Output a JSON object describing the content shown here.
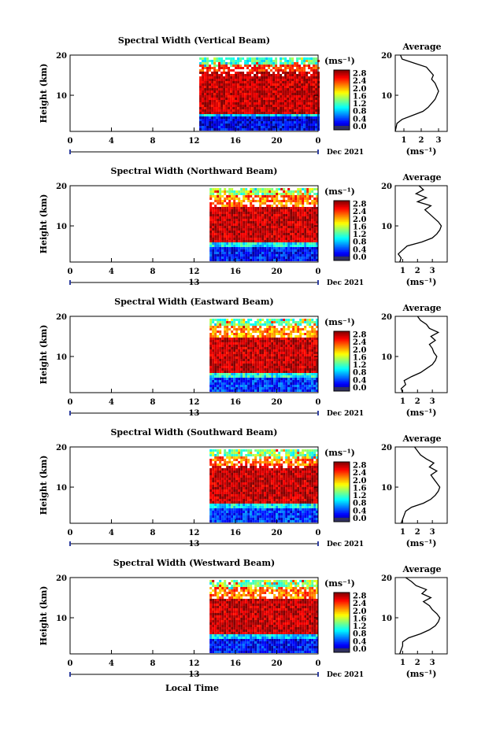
{
  "figure": {
    "xlabel": "Local Time",
    "unit_label": "(ms⁻¹)",
    "date_label": "Dec 2021",
    "avg_title": "Average",
    "avg_xlabel": "(ms⁻¹)"
  },
  "chart_data": [
    {
      "type": "heatmap",
      "title": "Spectral Width (Vertical Beam)",
      "ylabel": "Height (km)",
      "xticks": [
        "0",
        "4",
        "8",
        "12",
        "16",
        "20",
        "0"
      ],
      "yticks": [
        "10",
        "20"
      ],
      "xlim": [
        0,
        24
      ],
      "ylim": [
        1,
        20
      ],
      "data_start_hour": 12.5,
      "day_label": "",
      "colorbar": {
        "label": "(ms⁻¹)",
        "ticks": [
          "0.0",
          "0.4",
          "0.8",
          "1.2",
          "1.6",
          "2.0",
          "2.4",
          "2.8"
        ],
        "range": [
          0,
          3.0
        ]
      },
      "bands": [
        {
          "from_km": 1.0,
          "to_km": 4.5,
          "value": 0.3
        },
        {
          "from_km": 4.5,
          "to_km": 5.5,
          "value": 1.0
        },
        {
          "from_km": 5.5,
          "to_km": 16.0,
          "value": 2.8
        },
        {
          "from_km": 16.0,
          "to_km": 17.5,
          "value": 2.5
        },
        {
          "from_km": 17.5,
          "to_km": 19.5,
          "value": 1.3
        }
      ],
      "average": {
        "title": "Average",
        "xlabel": "(ms⁻¹)",
        "xticks": [
          "1",
          "2",
          "3"
        ],
        "xlim": [
          0.5,
          3.5
        ],
        "profile": [
          [
            1,
            0.5
          ],
          [
            2,
            0.55
          ],
          [
            3,
            0.6
          ],
          [
            4,
            0.9
          ],
          [
            5,
            1.5
          ],
          [
            6,
            2.1
          ],
          [
            7,
            2.4
          ],
          [
            8,
            2.6
          ],
          [
            9,
            2.8
          ],
          [
            10,
            2.9
          ],
          [
            11,
            3.0
          ],
          [
            12,
            2.9
          ],
          [
            13,
            2.8
          ],
          [
            14,
            2.6
          ],
          [
            15,
            2.7
          ],
          [
            16,
            2.5
          ],
          [
            17,
            2.3
          ],
          [
            18,
            1.6
          ],
          [
            19,
            0.9
          ],
          [
            20,
            0.8
          ]
        ]
      }
    },
    {
      "type": "heatmap",
      "title": "Spectral Width (Northward Beam)",
      "ylabel": "Height (km)",
      "xticks": [
        "0",
        "4",
        "8",
        "12",
        "16",
        "20",
        "0"
      ],
      "yticks": [
        "10",
        "20"
      ],
      "xlim": [
        0,
        24
      ],
      "ylim": [
        1,
        20
      ],
      "data_start_hour": 13.5,
      "day_label": "13",
      "colorbar": {
        "label": "(ms⁻¹)",
        "ticks": [
          "0.0",
          "0.4",
          "0.8",
          "1.2",
          "1.6",
          "2.0",
          "2.4",
          "2.8"
        ],
        "range": [
          0,
          3.0
        ]
      },
      "bands": [
        {
          "from_km": 1.0,
          "to_km": 5.0,
          "value": 0.4
        },
        {
          "from_km": 5.0,
          "to_km": 6.0,
          "value": 1.1
        },
        {
          "from_km": 6.0,
          "to_km": 15.0,
          "value": 2.8
        },
        {
          "from_km": 15.0,
          "to_km": 17.5,
          "value": 2.3
        },
        {
          "from_km": 17.5,
          "to_km": 19.5,
          "value": 1.5
        }
      ],
      "average": {
        "title": "Average",
        "xlabel": "(ms⁻¹)",
        "xticks": [
          "1",
          "2",
          "3"
        ],
        "xlim": [
          0.5,
          4.0
        ],
        "profile": [
          [
            1,
            0.8
          ],
          [
            2,
            0.9
          ],
          [
            3,
            0.7
          ],
          [
            4,
            1.0
          ],
          [
            5,
            1.3
          ],
          [
            6,
            2.3
          ],
          [
            7,
            3.0
          ],
          [
            8,
            3.3
          ],
          [
            9,
            3.5
          ],
          [
            10,
            3.6
          ],
          [
            11,
            3.4
          ],
          [
            12,
            3.1
          ],
          [
            13,
            2.8
          ],
          [
            14,
            2.5
          ],
          [
            15,
            2.9
          ],
          [
            16,
            2.0
          ],
          [
            17,
            2.6
          ],
          [
            18,
            1.9
          ],
          [
            19,
            2.4
          ],
          [
            20,
            2.1
          ]
        ]
      }
    },
    {
      "type": "heatmap",
      "title": "Spectral Width (Eastward Beam)",
      "ylabel": "Height (km)",
      "xticks": [
        "0",
        "4",
        "8",
        "12",
        "16",
        "20",
        "0"
      ],
      "yticks": [
        "10",
        "20"
      ],
      "xlim": [
        0,
        24
      ],
      "ylim": [
        1,
        20
      ],
      "data_start_hour": 13.5,
      "day_label": "13",
      "colorbar": {
        "label": "(ms⁻¹)",
        "ticks": [
          "0.0",
          "0.4",
          "0.8",
          "1.2",
          "1.6",
          "2.0",
          "2.4",
          "2.8"
        ],
        "range": [
          0,
          3.0
        ]
      },
      "bands": [
        {
          "from_km": 1.0,
          "to_km": 5.0,
          "value": 0.5
        },
        {
          "from_km": 5.0,
          "to_km": 6.0,
          "value": 1.2
        },
        {
          "from_km": 6.0,
          "to_km": 15.0,
          "value": 2.8
        },
        {
          "from_km": 15.0,
          "to_km": 17.5,
          "value": 2.2
        },
        {
          "from_km": 17.5,
          "to_km": 19.5,
          "value": 1.4
        }
      ],
      "average": {
        "title": "Average",
        "xlabel": "(ms⁻¹)",
        "xticks": [
          "1",
          "2",
          "3"
        ],
        "xlim": [
          0.5,
          4.0
        ],
        "profile": [
          [
            1,
            1.0
          ],
          [
            2,
            0.9
          ],
          [
            3,
            1.2
          ],
          [
            4,
            1.1
          ],
          [
            5,
            1.6
          ],
          [
            6,
            2.2
          ],
          [
            7,
            2.6
          ],
          [
            8,
            3.0
          ],
          [
            9,
            3.2
          ],
          [
            10,
            3.3
          ],
          [
            11,
            3.1
          ],
          [
            12,
            3.0
          ],
          [
            13,
            2.8
          ],
          [
            14,
            3.2
          ],
          [
            15,
            2.9
          ],
          [
            16,
            3.4
          ],
          [
            17,
            2.8
          ],
          [
            18,
            2.6
          ],
          [
            19,
            2.2
          ],
          [
            20,
            2.0
          ]
        ]
      }
    },
    {
      "type": "heatmap",
      "title": "Spectral Width (Southward Beam)",
      "ylabel": "Height (km)",
      "xticks": [
        "0",
        "4",
        "8",
        "12",
        "16",
        "20",
        "0"
      ],
      "yticks": [
        "10",
        "20"
      ],
      "xlim": [
        0,
        24
      ],
      "ylim": [
        1,
        20
      ],
      "data_start_hour": 13.5,
      "day_label": "13",
      "colorbar": {
        "label": "(ms⁻¹)",
        "ticks": [
          "0.0",
          "0.4",
          "0.8",
          "1.2",
          "1.6",
          "2.0",
          "2.4",
          "2.8"
        ],
        "range": [
          0,
          3.0
        ]
      },
      "bands": [
        {
          "from_km": 1.0,
          "to_km": 5.0,
          "value": 0.5
        },
        {
          "from_km": 5.0,
          "to_km": 6.0,
          "value": 1.1
        },
        {
          "from_km": 6.0,
          "to_km": 15.5,
          "value": 2.8
        },
        {
          "from_km": 15.5,
          "to_km": 17.5,
          "value": 2.3
        },
        {
          "from_km": 17.5,
          "to_km": 19.5,
          "value": 1.5
        }
      ],
      "average": {
        "title": "Average",
        "xlabel": "(ms⁻¹)",
        "xticks": [
          "1",
          "2",
          "3"
        ],
        "xlim": [
          0.5,
          4.0
        ],
        "profile": [
          [
            1,
            0.9
          ],
          [
            2,
            1.0
          ],
          [
            3,
            1.1
          ],
          [
            4,
            1.2
          ],
          [
            5,
            1.6
          ],
          [
            6,
            2.4
          ],
          [
            7,
            2.9
          ],
          [
            8,
            3.2
          ],
          [
            9,
            3.4
          ],
          [
            10,
            3.5
          ],
          [
            11,
            3.3
          ],
          [
            12,
            3.1
          ],
          [
            13,
            2.9
          ],
          [
            14,
            3.3
          ],
          [
            15,
            2.8
          ],
          [
            16,
            3.1
          ],
          [
            17,
            2.6
          ],
          [
            18,
            2.2
          ],
          [
            19,
            2.0
          ],
          [
            20,
            1.8
          ]
        ]
      }
    },
    {
      "type": "heatmap",
      "title": "Spectral Width (Westward Beam)",
      "ylabel": "Height (km)",
      "xticks": [
        "0",
        "4",
        "8",
        "12",
        "16",
        "20",
        "0"
      ],
      "yticks": [
        "10",
        "20"
      ],
      "xlim": [
        0,
        24
      ],
      "ylim": [
        1,
        20
      ],
      "data_start_hour": 13.5,
      "day_label": "13",
      "colorbar": {
        "label": "(ms⁻¹)",
        "ticks": [
          "0.0",
          "0.4",
          "0.8",
          "1.2",
          "1.6",
          "2.0",
          "2.4",
          "2.8"
        ],
        "range": [
          0,
          3.0
        ]
      },
      "bands": [
        {
          "from_km": 1.0,
          "to_km": 5.0,
          "value": 0.4
        },
        {
          "from_km": 5.0,
          "to_km": 6.0,
          "value": 1.0
        },
        {
          "from_km": 6.0,
          "to_km": 15.0,
          "value": 2.8
        },
        {
          "from_km": 15.0,
          "to_km": 17.5,
          "value": 2.3
        },
        {
          "from_km": 17.5,
          "to_km": 19.5,
          "value": 1.5
        }
      ],
      "average": {
        "title": "Average",
        "xlabel": "(ms⁻¹)",
        "xticks": [
          "1",
          "2",
          "3"
        ],
        "xlim": [
          0.5,
          4.0
        ],
        "profile": [
          [
            1,
            0.8
          ],
          [
            2,
            0.9
          ],
          [
            3,
            1.0
          ],
          [
            4,
            1.0
          ],
          [
            5,
            1.4
          ],
          [
            6,
            2.2
          ],
          [
            7,
            2.8
          ],
          [
            8,
            3.2
          ],
          [
            9,
            3.4
          ],
          [
            10,
            3.5
          ],
          [
            11,
            3.3
          ],
          [
            12,
            3.0
          ],
          [
            13,
            2.8
          ],
          [
            14,
            2.4
          ],
          [
            15,
            2.9
          ],
          [
            16,
            2.3
          ],
          [
            17,
            2.6
          ],
          [
            18,
            1.9
          ],
          [
            19,
            1.6
          ],
          [
            20,
            1.2
          ]
        ]
      }
    }
  ]
}
